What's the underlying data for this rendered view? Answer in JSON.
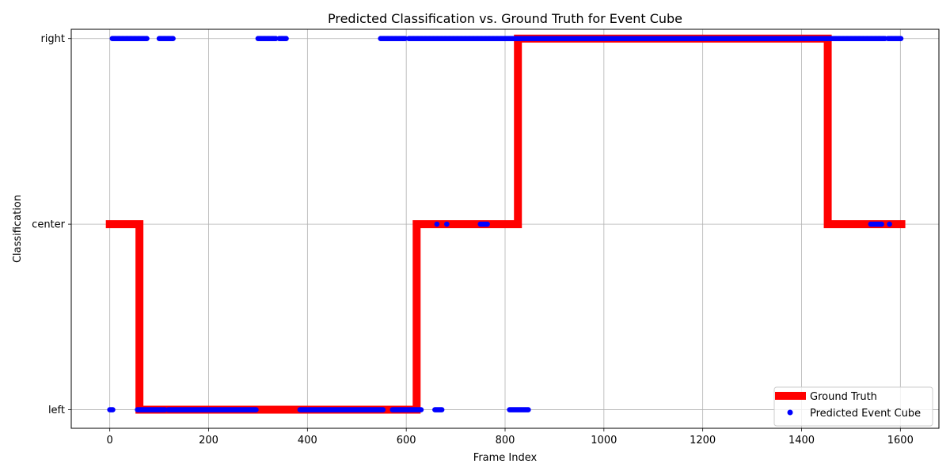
{
  "chart_data": {
    "type": "scatter",
    "title": "Predicted Classification vs. Ground Truth for Event Cube",
    "xlabel": "Frame Index",
    "ylabel": "Classification",
    "xlim": [
      -78,
      1678
    ],
    "ylim": [
      -0.1,
      2.05
    ],
    "x_ticks": [
      0,
      200,
      400,
      600,
      800,
      1000,
      1200,
      1400,
      1600
    ],
    "y_categories": [
      "left",
      "center",
      "right"
    ],
    "grid": true,
    "legend_position": "lower-right",
    "series": [
      {
        "name": "Ground Truth",
        "kind": "step-line",
        "color": "#ff0000",
        "segments": [
          {
            "x_start": -8,
            "x_end": 60,
            "category": "center"
          },
          {
            "x_start": 60,
            "x_end": 621,
            "category": "left"
          },
          {
            "x_start": 621,
            "x_end": 826,
            "category": "center"
          },
          {
            "x_start": 826,
            "x_end": 1453,
            "category": "right"
          },
          {
            "x_start": 1453,
            "x_end": 1610,
            "category": "center"
          }
        ]
      },
      {
        "name": "Predicted Event Cube",
        "kind": "points",
        "color": "#0000ff",
        "ranges": [
          {
            "x_start": 0,
            "x_end": 7,
            "category": "left"
          },
          {
            "x_start": 5,
            "x_end": 76,
            "category": "right"
          },
          {
            "x_start": 56,
            "x_end": 112,
            "category": "left"
          },
          {
            "x_start": 100,
            "x_end": 128,
            "category": "right"
          },
          {
            "x_start": 118,
            "x_end": 296,
            "category": "left"
          },
          {
            "x_start": 300,
            "x_end": 336,
            "category": "right"
          },
          {
            "x_start": 343,
            "x_end": 357,
            "category": "right"
          },
          {
            "x_start": 385,
            "x_end": 553,
            "category": "left"
          },
          {
            "x_start": 548,
            "x_end": 598,
            "category": "right"
          },
          {
            "x_start": 572,
            "x_end": 630,
            "category": "left"
          },
          {
            "x_start": 605,
            "x_end": 1570,
            "category": "right"
          },
          {
            "x_start": 1575,
            "x_end": 1602,
            "category": "right"
          },
          {
            "x_start": 658,
            "x_end": 673,
            "category": "left"
          },
          {
            "x_start": 809,
            "x_end": 848,
            "category": "left"
          },
          {
            "x_start": 1540,
            "x_end": 1562,
            "category": "center"
          },
          {
            "x_start": 750,
            "x_end": 765,
            "category": "center"
          }
        ],
        "points": [
          {
            "x": 662,
            "category": "center"
          },
          {
            "x": 682,
            "category": "center"
          },
          {
            "x": 1578,
            "category": "center"
          }
        ]
      }
    ]
  }
}
